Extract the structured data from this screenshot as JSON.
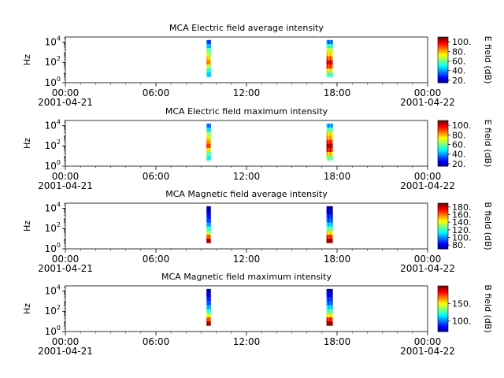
{
  "colors": {
    "background": "#ffffff",
    "axis": "#000000"
  },
  "time_axis": {
    "ticks": [
      {
        "hours": 0,
        "time": "00:00",
        "date": "2001-04-21"
      },
      {
        "hours": 6,
        "time": "06:00",
        "date": ""
      },
      {
        "hours": 12,
        "time": "12:00",
        "date": ""
      },
      {
        "hours": 18,
        "time": "18:00",
        "date": ""
      },
      {
        "hours": 24,
        "time": "00:00",
        "date": "2001-04-22"
      }
    ],
    "range_hours": [
      0,
      24
    ]
  },
  "chart_data": [
    {
      "type": "heatmap",
      "title": "MCA  Electric field average intensity",
      "ylabel": "Hz",
      "y_scale": "log",
      "y_ticks": [
        "10^0",
        "10^2",
        "10^4"
      ],
      "ylim_log10": [
        0,
        4.5
      ],
      "colorbar": {
        "label": "E field (dB)",
        "range": [
          15,
          110
        ],
        "ticks": [
          20,
          40,
          60,
          80,
          100
        ]
      },
      "passes": [
        {
          "start_hours": 9.35,
          "end_hours": 9.62,
          "freq_log10": [
            0.6,
            4.2
          ],
          "profile": [
            45,
            55,
            70,
            85,
            80,
            70,
            60,
            45,
            35
          ]
        },
        {
          "start_hours": 17.3,
          "end_hours": 17.7,
          "freq_log10": [
            0.6,
            4.2
          ],
          "profile": [
            55,
            75,
            95,
            100,
            90,
            80,
            70,
            55,
            40
          ]
        }
      ]
    },
    {
      "type": "heatmap",
      "title": "MCA  Electric field maximum intensity",
      "ylabel": "Hz",
      "y_scale": "log",
      "y_ticks": [
        "10^0",
        "10^2",
        "10^4"
      ],
      "ylim_log10": [
        0,
        4.5
      ],
      "colorbar": {
        "label": "E field (dB)",
        "range": [
          15,
          110
        ],
        "ticks": [
          20,
          40,
          60,
          80,
          100
        ]
      },
      "passes": [
        {
          "start_hours": 9.35,
          "end_hours": 9.62,
          "freq_log10": [
            0.6,
            4.2
          ],
          "profile": [
            50,
            60,
            78,
            92,
            85,
            75,
            65,
            50,
            40
          ]
        },
        {
          "start_hours": 17.3,
          "end_hours": 17.7,
          "freq_log10": [
            0.6,
            4.2
          ],
          "profile": [
            60,
            80,
            100,
            105,
            95,
            85,
            75,
            60,
            45
          ]
        }
      ]
    },
    {
      "type": "heatmap",
      "title": "MCA  Magnetic field average intensity",
      "ylabel": "Hz",
      "y_scale": "log",
      "y_ticks": [
        "10^0",
        "10^2",
        "10^4"
      ],
      "ylim_log10": [
        0,
        4.5
      ],
      "colorbar": {
        "label": "B field (dB)",
        "range": [
          70,
          190
        ],
        "ticks": [
          80,
          100,
          120,
          140,
          160,
          180
        ]
      },
      "passes": [
        {
          "start_hours": 9.35,
          "end_hours": 9.62,
          "freq_log10": [
            0.6,
            4.2
          ],
          "profile": [
            185,
            165,
            140,
            120,
            105,
            95,
            85,
            80,
            78
          ]
        },
        {
          "start_hours": 17.3,
          "end_hours": 17.7,
          "freq_log10": [
            0.6,
            4.2
          ],
          "profile": [
            188,
            170,
            150,
            125,
            110,
            98,
            88,
            80,
            76
          ]
        }
      ]
    },
    {
      "type": "heatmap",
      "title": "MCA  Magnetic field maximum intensity",
      "ylabel": "Hz",
      "y_scale": "log",
      "y_ticks": [
        "10^0",
        "10^2",
        "10^4"
      ],
      "ylim_log10": [
        0,
        4.5
      ],
      "colorbar": {
        "label": "B field (dB)",
        "range": [
          70,
          200
        ],
        "ticks": [
          100,
          150
        ]
      },
      "passes": [
        {
          "start_hours": 9.35,
          "end_hours": 9.62,
          "freq_log10": [
            0.6,
            4.2
          ],
          "profile": [
            195,
            175,
            150,
            125,
            110,
            100,
            90,
            82,
            78
          ]
        },
        {
          "start_hours": 17.3,
          "end_hours": 17.7,
          "freq_log10": [
            0.6,
            4.2
          ],
          "profile": [
            198,
            180,
            155,
            130,
            115,
            102,
            92,
            84,
            80
          ]
        }
      ]
    }
  ]
}
